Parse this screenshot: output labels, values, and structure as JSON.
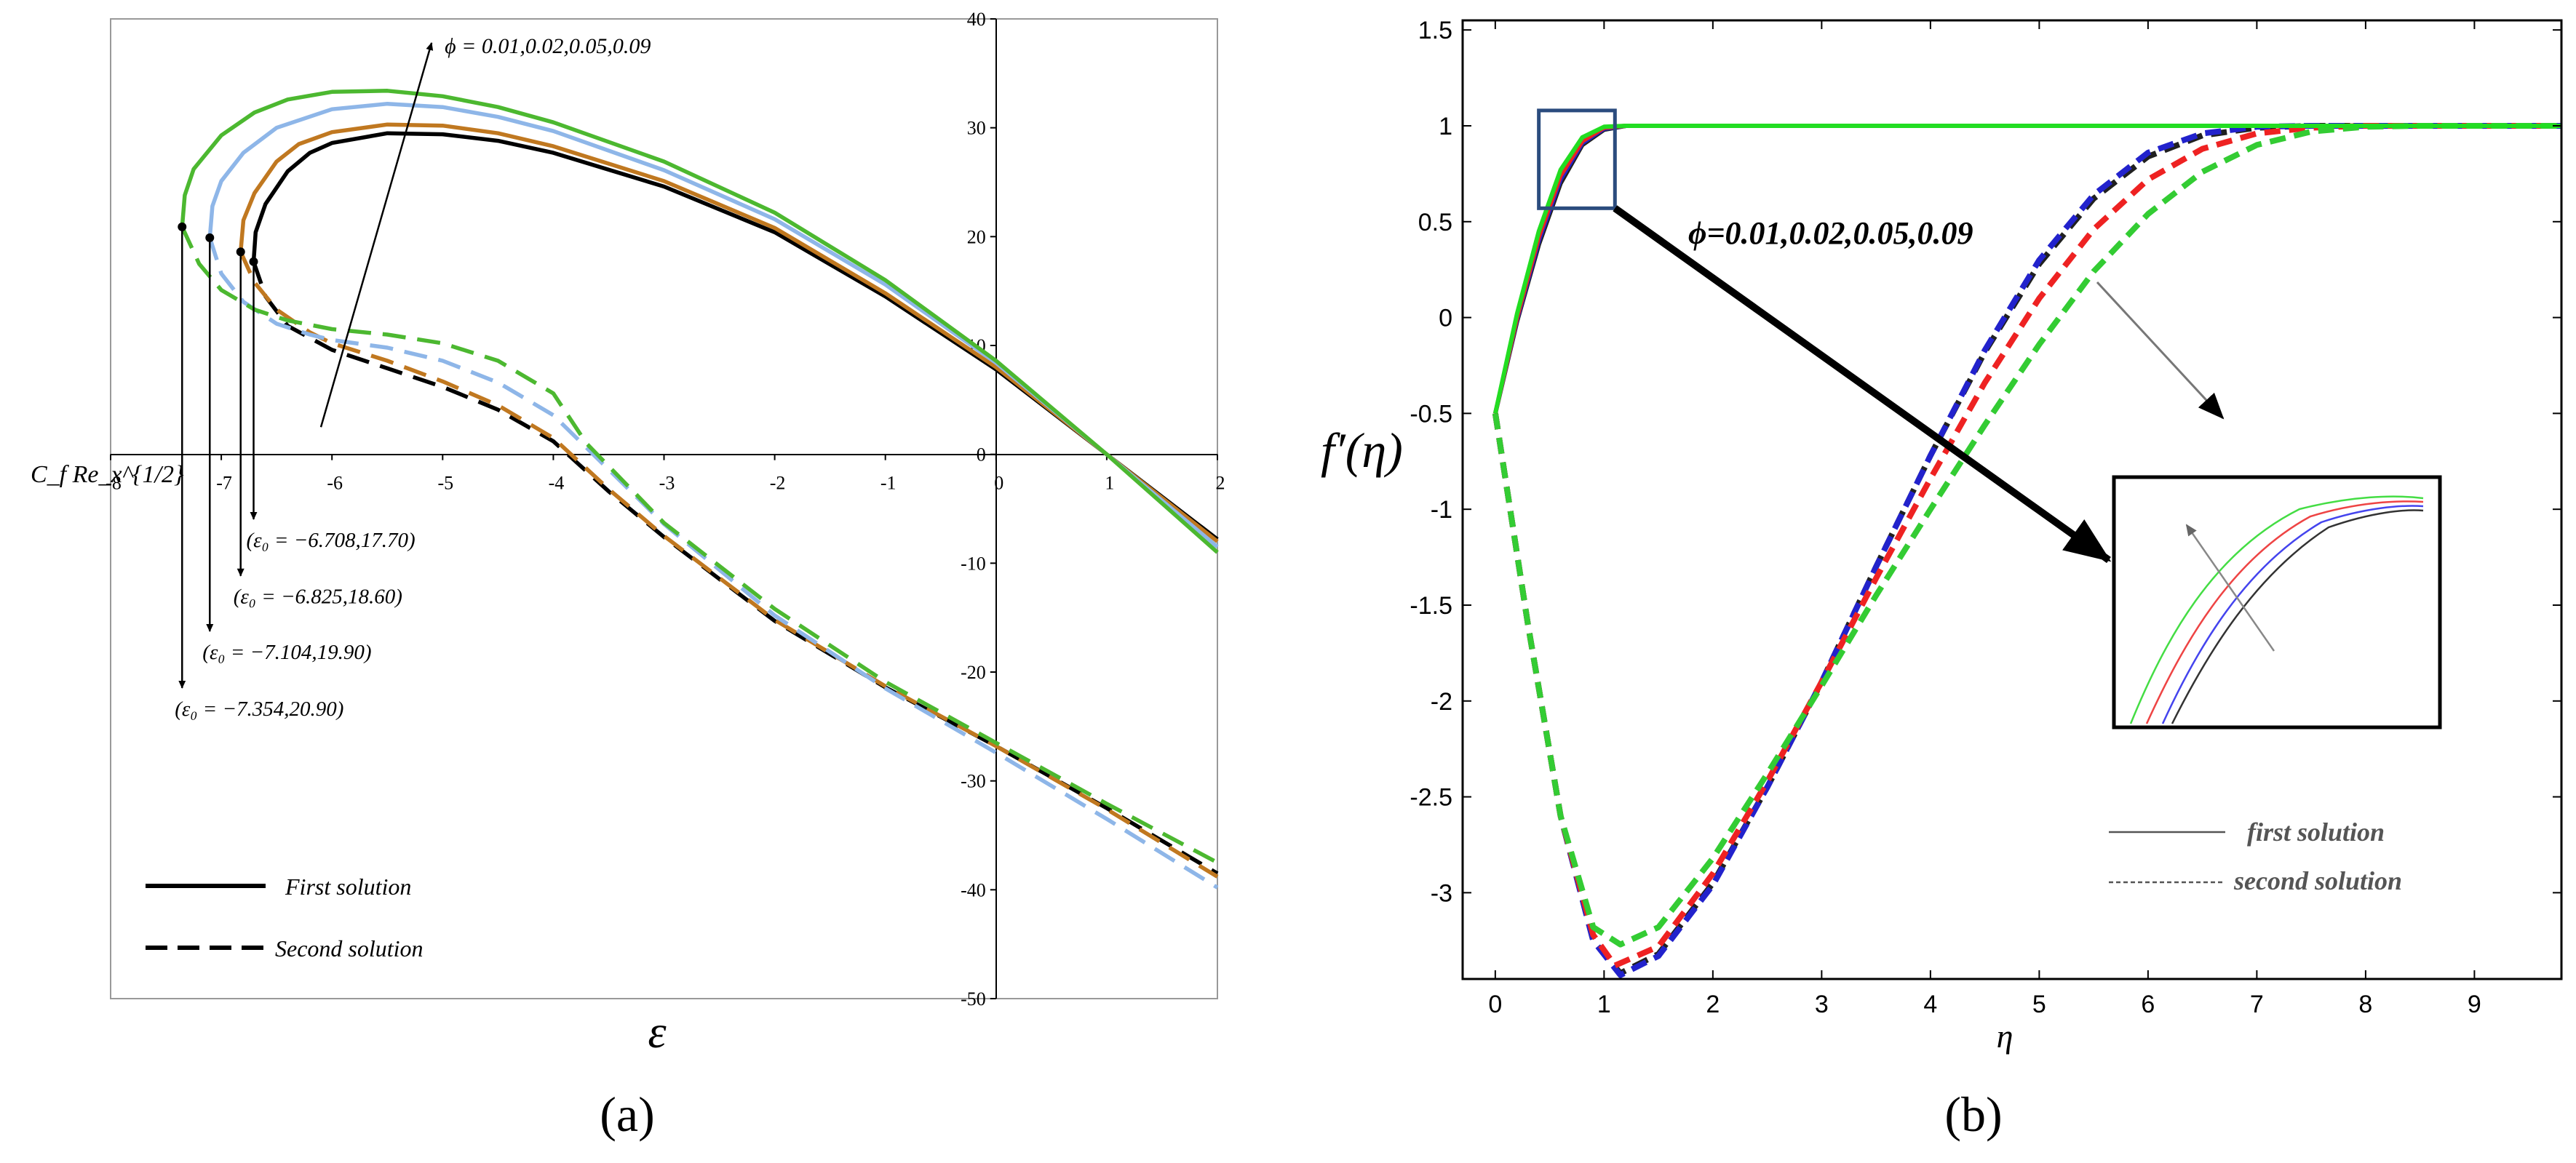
{
  "panels": {
    "a": {
      "caption": "(a)",
      "chart_data": {
        "type": "line",
        "xlabel": "ε",
        "ylabel": "C_f Re_x^{1/2}",
        "xlim": [
          -8,
          2
        ],
        "ylim": [
          -50,
          40
        ],
        "xticks": [
          -8,
          -7,
          -6,
          -5,
          -4,
          -3,
          -2,
          -1,
          0,
          1,
          2
        ],
        "xtick_labels": [
          "-8",
          "-7",
          "-6",
          "-5",
          "-4",
          "-3",
          "-2",
          "-1",
          "0",
          "1",
          "2"
        ],
        "yticks": [
          40,
          30,
          20,
          10,
          0,
          -10,
          -20,
          -30,
          -40,
          -50
        ],
        "ytick_labels": [
          "40",
          "30",
          "20",
          "10",
          "0",
          "-10",
          "-20",
          "-30",
          "-40",
          "-50"
        ],
        "grid": false,
        "legend": {
          "position": "bottom-left",
          "entries": [
            {
              "label": "First solution",
              "style": "solid"
            },
            {
              "label": "Second solution",
              "style": "dashed"
            }
          ]
        },
        "annotations": [
          {
            "text": "ϕ = 0.01,0.02,0.05,0.09",
            "arrow_from": [
              -6.1,
              2.5
            ],
            "arrow_to": [
              -5.1,
              37.8
            ]
          },
          {
            "text": "(ε₀ = −6.708,17.70)",
            "point": [
              -6.708,
              17.7
            ],
            "label_at": [
              -6.1,
              -8.5
            ]
          },
          {
            "text": "(ε₀ = −6.825,18.60)",
            "point": [
              -6.825,
              18.6
            ],
            "label_at": [
              -6.3,
              -13.7
            ]
          },
          {
            "text": "(ε₀ = −7.104,19.90)",
            "point": [
              -7.104,
              19.9
            ],
            "label_at": [
              -6.6,
              -18.8
            ]
          },
          {
            "text": "(ε₀ = −7.354,20.90)",
            "point": [
              -7.354,
              20.9
            ],
            "label_at": [
              -6.9,
              -24.0
            ]
          }
        ],
        "series": [
          {
            "phi": 0.01,
            "color": "#000000",
            "solution": "first",
            "x": [
              -6.708,
              -6.69,
              -6.6,
              -6.4,
              -6.2,
              -6.0,
              -5.5,
              -5.0,
              -4.5,
              -4.0,
              -3.0,
              -2.0,
              -1.0,
              0.0,
              1.0,
              2.0
            ],
            "y": [
              17.7,
              20.4,
              23.0,
              26.0,
              27.7,
              28.6,
              29.5,
              29.4,
              28.8,
              27.7,
              24.6,
              20.4,
              14.5,
              7.8,
              0.0,
              -7.8
            ]
          },
          {
            "phi": 0.02,
            "color": "#C07820",
            "solution": "first",
            "x": [
              -6.825,
              -6.8,
              -6.7,
              -6.5,
              -6.3,
              -6.0,
              -5.5,
              -5.0,
              -4.5,
              -4.0,
              -3.0,
              -2.0,
              -1.0,
              0.0,
              1.0,
              2.0
            ],
            "y": [
              18.6,
              21.5,
              24.0,
              26.9,
              28.5,
              29.6,
              30.3,
              30.2,
              29.5,
              28.3,
              25.1,
              20.8,
              14.8,
              8.0,
              0.0,
              -8.0
            ]
          },
          {
            "phi": 0.05,
            "color": "#8EB6E8",
            "solution": "first",
            "x": [
              -7.104,
              -7.08,
              -7.0,
              -6.8,
              -6.5,
              -6.0,
              -5.5,
              -5.0,
              -4.5,
              -4.0,
              -3.0,
              -2.0,
              -1.0,
              0.0,
              1.0,
              2.0
            ],
            "y": [
              19.9,
              22.8,
              25.1,
              27.7,
              30.0,
              31.7,
              32.2,
              31.9,
              31.0,
              29.7,
              26.1,
              21.6,
              15.6,
              8.4,
              0.0,
              -8.5
            ]
          },
          {
            "phi": 0.09,
            "color": "#4CB830",
            "solution": "first",
            "x": [
              -7.354,
              -7.33,
              -7.25,
              -7.0,
              -6.7,
              -6.4,
              -6.0,
              -5.5,
              -5.0,
              -4.5,
              -4.0,
              -3.0,
              -2.0,
              -1.0,
              0.0,
              1.0,
              2.0
            ],
            "y": [
              20.9,
              23.8,
              26.2,
              29.3,
              31.4,
              32.6,
              33.3,
              33.4,
              32.9,
              31.9,
              30.5,
              26.9,
              22.2,
              16.0,
              8.6,
              0.0,
              -9.0
            ]
          },
          {
            "phi": 0.01,
            "color": "#000000",
            "solution": "second",
            "x": [
              -6.708,
              -6.6,
              -6.4,
              -6.0,
              -5.5,
              -5.0,
              -4.5,
              -4.0,
              -3.5,
              -3.0,
              -2.0,
              -1.0,
              0.0,
              1.0,
              2.0
            ],
            "y": [
              17.7,
              14.5,
              11.8,
              9.6,
              7.9,
              6.2,
              4.1,
              1.2,
              -3.4,
              -7.6,
              -15.3,
              -21.4,
              -26.8,
              -32.5,
              -38.5
            ]
          },
          {
            "phi": 0.02,
            "color": "#C07820",
            "solution": "second",
            "x": [
              -6.825,
              -6.7,
              -6.5,
              -6.2,
              -6.0,
              -5.5,
              -5.0,
              -4.5,
              -4.0,
              -3.5,
              -3.0,
              -2.0,
              -1.0,
              0.0,
              1.0,
              2.0
            ],
            "y": [
              18.6,
              15.8,
              13.3,
              11.2,
              10.2,
              8.6,
              6.7,
              4.5,
              1.5,
              -3.2,
              -7.5,
              -15.2,
              -21.3,
              -26.8,
              -32.6,
              -38.8
            ]
          },
          {
            "phi": 0.05,
            "color": "#8EB6E8",
            "solution": "second",
            "x": [
              -7.104,
              -7.0,
              -6.8,
              -6.5,
              -6.2,
              -6.0,
              -5.5,
              -5.0,
              -4.5,
              -4.0,
              -3.5,
              -3.0,
              -2.0,
              -1.0,
              0.0,
              1.0,
              2.0
            ],
            "y": [
              19.9,
              16.6,
              14.0,
              12.0,
              11.0,
              10.5,
              9.8,
              8.6,
              6.6,
              3.6,
              -1.4,
              -6.4,
              -14.8,
              -21.5,
              -27.4,
              -33.5,
              -39.8
            ]
          },
          {
            "phi": 0.09,
            "color": "#4CB830",
            "solution": "second",
            "x": [
              -7.354,
              -7.2,
              -7.0,
              -6.7,
              -6.4,
              -6.0,
              -5.5,
              -5.0,
              -4.5,
              -4.0,
              -3.7,
              -3.0,
              -2.0,
              -1.0,
              0.0,
              1.0,
              2.0
            ],
            "y": [
              20.9,
              17.5,
              15.1,
              13.3,
              12.3,
              11.5,
              11.0,
              10.2,
              8.6,
              5.6,
              1.0,
              -6.3,
              -14.2,
              -20.9,
              -26.5,
              -32.1,
              -37.5
            ]
          }
        ]
      }
    },
    "b": {
      "caption": "(b)",
      "chart_data": {
        "type": "line",
        "xlabel": "η",
        "ylabel": "f′(η)",
        "xlim": [
          -0.3,
          9.8
        ],
        "ylim": [
          -3.45,
          1.55
        ],
        "xticks": [
          0,
          1,
          2,
          3,
          4,
          5,
          6,
          7,
          8,
          9
        ],
        "xtick_labels": [
          "0",
          "1",
          "2",
          "3",
          "4",
          "5",
          "6",
          "7",
          "8",
          "9"
        ],
        "yticks": [
          1.5,
          1,
          0.5,
          0,
          -0.5,
          -1,
          -1.5,
          -2,
          -2.5,
          -3
        ],
        "ytick_labels": [
          "1.5",
          "1",
          "0.5",
          "0",
          "-0.5",
          "-1",
          "-1.5",
          "-2",
          "-2.5",
          "-3"
        ],
        "grid": false,
        "legend": {
          "position": "bottom-right",
          "entries": [
            {
              "label": "first solution",
              "style": "solid"
            },
            {
              "label": "second solution",
              "style": "dotted"
            }
          ]
        },
        "annotations": [
          {
            "text": "ϕ=0.01,0.02,0.05,0.09",
            "bold_italic": true,
            "arrow_from": [
              5.5,
              0.1
            ],
            "arrow_to": [
              6.8,
              -0.45
            ]
          },
          {
            "text": "",
            "type": "zoom_box",
            "x_range": [
              0.4,
              1.1
            ],
            "y_range": [
              0.57,
              1.08
            ]
          },
          {
            "text": "",
            "type": "zoom_arrow",
            "arrow_from": [
              1.1,
              0.57
            ],
            "arrow_to": [
              5.7,
              -1.45
            ]
          }
        ],
        "series": [
          {
            "phi": 0.01,
            "color": "#202020",
            "solution": "first",
            "x": [
              0,
              0.2,
              0.4,
              0.6,
              0.8,
              1.0,
              1.2,
              1.5,
              2.0,
              9.8
            ],
            "y": [
              -0.5,
              -0.02,
              0.38,
              0.7,
              0.9,
              0.98,
              1.0,
              1.0,
              1.0,
              1.0
            ]
          },
          {
            "phi": 0.02,
            "color": "#2222CC",
            "solution": "first",
            "x": [
              0,
              0.2,
              0.4,
              0.6,
              0.8,
              1.0,
              1.2,
              1.5,
              2.0,
              9.8
            ],
            "y": [
              -0.5,
              -0.01,
              0.4,
              0.72,
              0.91,
              0.985,
              1.0,
              1.0,
              1.0,
              1.0
            ]
          },
          {
            "phi": 0.05,
            "color": "#EE2222",
            "solution": "first",
            "x": [
              0,
              0.2,
              0.4,
              0.6,
              0.8,
              1.0,
              1.2,
              1.5,
              2.0,
              9.8
            ],
            "y": [
              -0.5,
              0.0,
              0.42,
              0.74,
              0.92,
              0.99,
              1.0,
              1.0,
              1.0,
              1.0
            ]
          },
          {
            "phi": 0.09,
            "color": "#22DD22",
            "solution": "first",
            "x": [
              0,
              0.2,
              0.4,
              0.6,
              0.8,
              1.0,
              1.2,
              1.5,
              2.0,
              9.8
            ],
            "y": [
              -0.5,
              0.02,
              0.45,
              0.77,
              0.94,
              0.995,
              1.0,
              1.0,
              1.0,
              1.0
            ]
          },
          {
            "phi": 0.01,
            "color": "#202020",
            "solution": "second",
            "x": [
              0,
              0.3,
              0.6,
              0.9,
              1.15,
              1.5,
              2.0,
              2.5,
              3.0,
              3.5,
              4.0,
              4.5,
              5.0,
              5.5,
              6.0,
              6.5,
              7.0,
              7.5,
              8.0,
              8.5,
              9.8
            ],
            "y": [
              -0.5,
              -1.6,
              -2.6,
              -3.25,
              -3.42,
              -3.32,
              -2.95,
              -2.45,
              -1.9,
              -1.3,
              -0.72,
              -0.18,
              0.28,
              0.62,
              0.84,
              0.95,
              0.99,
              1.0,
              1.0,
              1.0,
              1.0
            ]
          },
          {
            "phi": 0.02,
            "color": "#2222CC",
            "solution": "second",
            "x": [
              0,
              0.3,
              0.6,
              0.9,
              1.15,
              1.5,
              2.0,
              2.5,
              3.0,
              3.5,
              4.0,
              4.5,
              5.0,
              5.5,
              6.0,
              6.5,
              7.0,
              7.5,
              8.0,
              8.5,
              9.8
            ],
            "y": [
              -0.5,
              -1.6,
              -2.6,
              -3.25,
              -3.43,
              -3.33,
              -2.96,
              -2.45,
              -1.9,
              -1.3,
              -0.72,
              -0.17,
              0.3,
              0.64,
              0.86,
              0.96,
              0.995,
              1.0,
              1.0,
              1.0,
              1.0
            ]
          },
          {
            "phi": 0.05,
            "color": "#EE2222",
            "solution": "second",
            "x": [
              0,
              0.3,
              0.6,
              0.9,
              1.1,
              1.5,
              2.0,
              2.5,
              3.0,
              3.5,
              4.0,
              4.5,
              5.0,
              5.5,
              6.0,
              6.5,
              7.0,
              7.5,
              8.0,
              8.5,
              9.8
            ],
            "y": [
              -0.5,
              -1.6,
              -2.6,
              -3.22,
              -3.38,
              -3.28,
              -2.9,
              -2.42,
              -1.9,
              -1.36,
              -0.84,
              -0.34,
              0.1,
              0.46,
              0.72,
              0.88,
              0.96,
              0.99,
              1.0,
              1.0,
              1.0
            ]
          },
          {
            "phi": 0.09,
            "color": "#33CC33",
            "solution": "second",
            "x": [
              0,
              0.3,
              0.6,
              0.9,
              1.15,
              1.5,
              2.0,
              2.5,
              3.0,
              3.5,
              4.0,
              4.5,
              5.0,
              5.5,
              6.0,
              6.5,
              7.0,
              7.5,
              8.0,
              8.5,
              9.8
            ],
            "y": [
              -0.5,
              -1.6,
              -2.6,
              -3.18,
              -3.27,
              -3.18,
              -2.82,
              -2.38,
              -1.92,
              -1.45,
              -1.0,
              -0.56,
              -0.14,
              0.24,
              0.54,
              0.76,
              0.9,
              0.97,
              0.995,
              1.0,
              1.0
            ]
          }
        ]
      }
    }
  }
}
